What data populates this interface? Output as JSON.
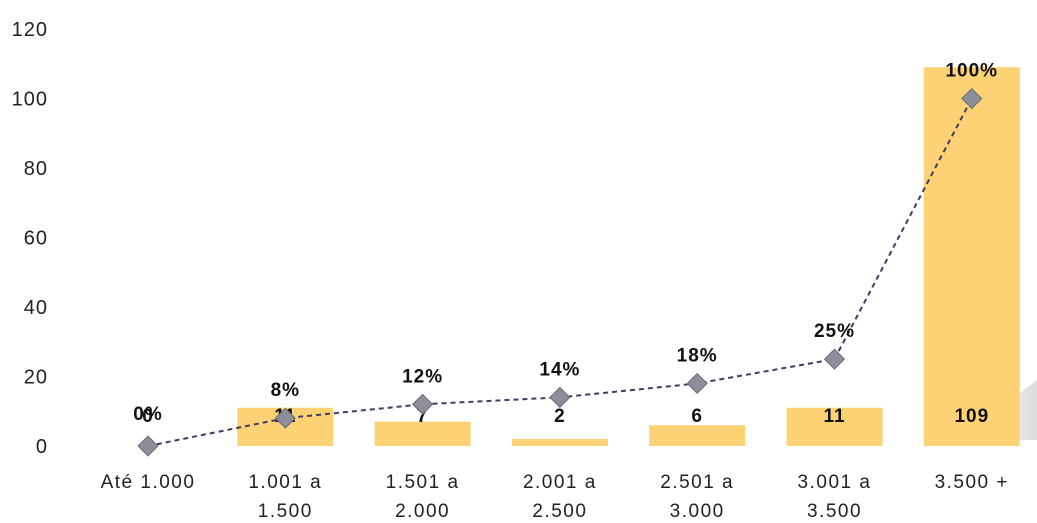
{
  "chart_data": {
    "type": "bar",
    "categories": [
      [
        "Até 1.000"
      ],
      [
        "1.001 a",
        "1.500"
      ],
      [
        "1.501 a",
        "2.000"
      ],
      [
        "2.001 a",
        "2.500"
      ],
      [
        "2.501 a",
        "3.000"
      ],
      [
        "3.001 a",
        "3.500"
      ],
      [
        "3.500 +"
      ]
    ],
    "series": [
      {
        "type": "bar",
        "values": [
          0,
          11,
          7,
          2,
          6,
          11,
          109
        ],
        "labels": [
          "0",
          "11",
          "7",
          "2",
          "6",
          "11",
          "109"
        ],
        "color": "#FDD274"
      },
      {
        "type": "line",
        "values": [
          0,
          8,
          12,
          14,
          18,
          25,
          100
        ],
        "labels": [
          "0%",
          "8%",
          "12%",
          "14%",
          "18%",
          "25%",
          "100%"
        ],
        "color": "#3F3D63",
        "marker_color": "#8E8E9A"
      }
    ],
    "ylim": [
      0,
      120
    ],
    "yticks": [
      "0",
      "20",
      "40",
      "60",
      "80",
      "100",
      "120"
    ],
    "grid": false,
    "legend": "none"
  }
}
